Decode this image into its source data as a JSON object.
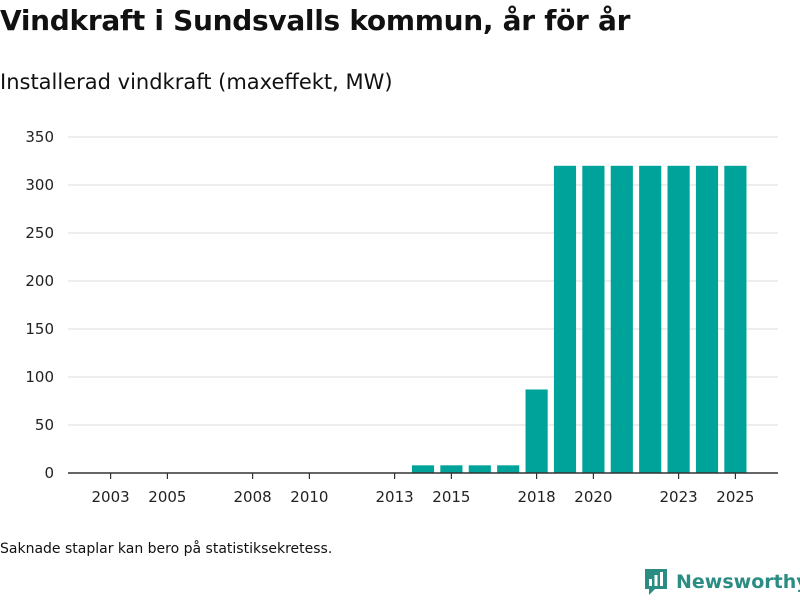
{
  "chart_data": {
    "type": "bar",
    "title": "Vindkraft i Sundsvalls kommun, år för år",
    "subtitle": "Installerad vindkraft (maxeffekt, MW)",
    "xlabel": "",
    "ylabel": "",
    "ylim": [
      0,
      350
    ],
    "yticks": [
      0,
      50,
      100,
      150,
      200,
      250,
      300,
      350
    ],
    "x_range": [
      2001.5,
      2026.5
    ],
    "xticks": [
      2003,
      2005,
      2008,
      2010,
      2013,
      2015,
      2018,
      2020,
      2023,
      2025
    ],
    "x": [
      2014,
      2015,
      2016,
      2017,
      2018,
      2019,
      2020,
      2021,
      2022,
      2023,
      2024,
      2025
    ],
    "values": [
      8,
      8,
      8,
      8,
      87,
      320,
      320,
      320,
      320,
      320,
      320,
      320
    ],
    "bar_color": "#00a39a",
    "grid": true,
    "legend": "none"
  },
  "footnote": "Saknade staplar kan bero på statistiksekretess.",
  "brand": {
    "name": "Newsworthy",
    "icon": "newsworthy-logo-icon",
    "color": "#2b8c83"
  }
}
